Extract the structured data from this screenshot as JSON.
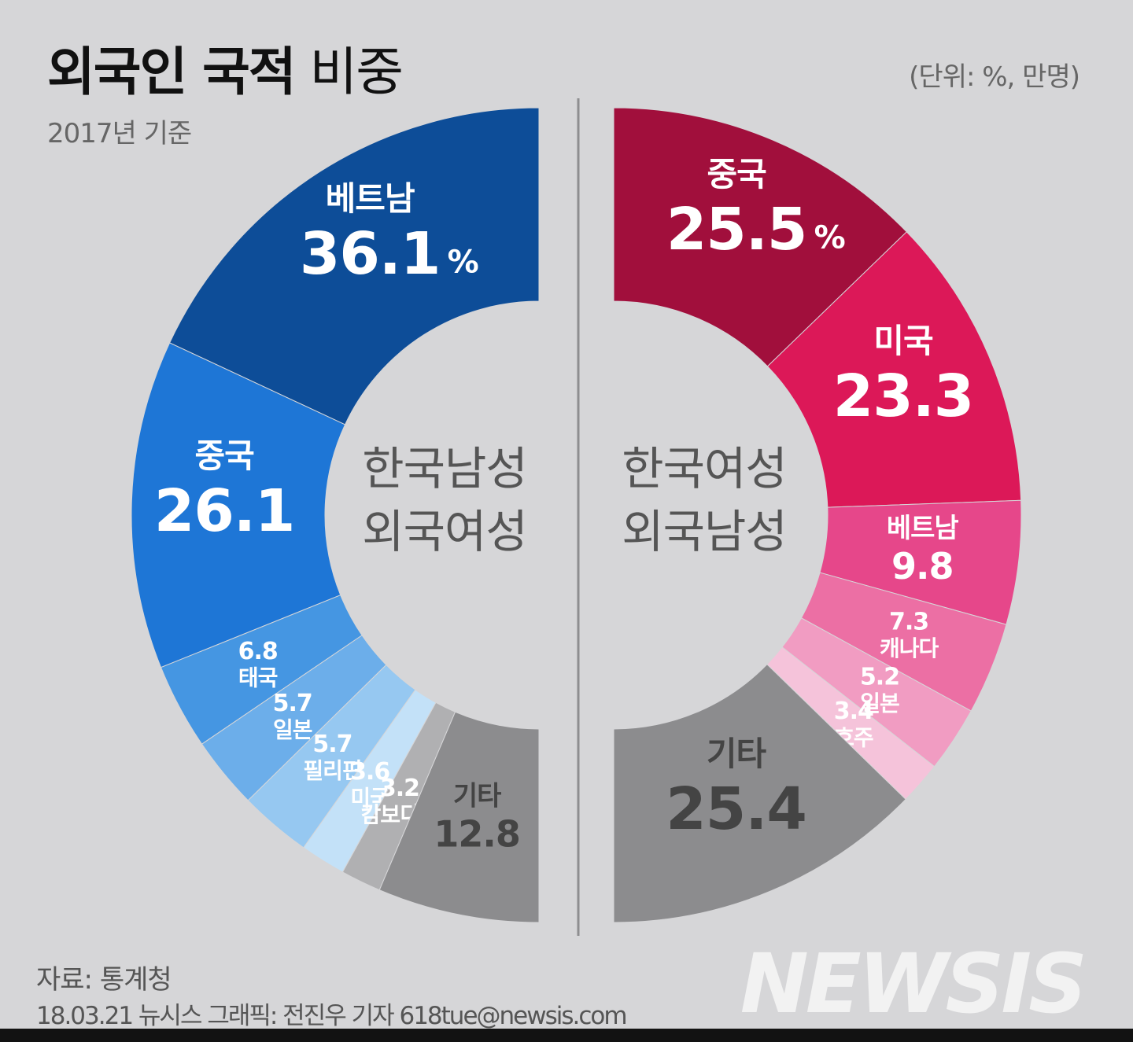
{
  "title_bold": "외국인 국적",
  "title_light": " 비중",
  "subtitle": "2017년 기준",
  "unit_note": "(단위: %, 만명)",
  "source": "자료: 통계청",
  "credit": "18.03.21 뉴시스 그래픽: 전진우 기자 618tue@newsis.com",
  "logo_text": "NEWSIS",
  "colors": {
    "background": "#d6d6d8",
    "divider": "#8e8e90",
    "center_label": "#555555"
  },
  "chart_data": [
    {
      "type": "pie",
      "center_label": [
        "한국남성",
        "외국여성"
      ],
      "slices": [
        {
          "label": "베트남",
          "value": 36.1,
          "value_text": "36.1",
          "suffix": "%",
          "color": "#0d4d98"
        },
        {
          "label": "중국",
          "value": 26.1,
          "value_text": "26.1",
          "suffix": "",
          "color": "#1e76d6"
        },
        {
          "label": "태국",
          "value": 6.8,
          "value_text": "6.8",
          "suffix": "",
          "color": "#4596e2"
        },
        {
          "label": "일본",
          "value": 5.7,
          "value_text": "5.7",
          "suffix": "",
          "color": "#6caeea"
        },
        {
          "label": "필리핀",
          "value": 5.7,
          "value_text": "5.7",
          "suffix": "",
          "color": "#96c8f1"
        },
        {
          "label": "미국",
          "value": 3.6,
          "value_text": "3.6",
          "suffix": "",
          "color": "#c3e1f8"
        },
        {
          "label": "캄보디아",
          "value": 3.2,
          "value_text": "3.2",
          "suffix": "",
          "color": "#b0b0b2"
        },
        {
          "label": "기타",
          "value": 12.8,
          "value_text": "12.8",
          "suffix": "",
          "color": "#8c8c8e"
        }
      ]
    },
    {
      "type": "pie",
      "center_label": [
        "한국여성",
        "외국남성"
      ],
      "slices": [
        {
          "label": "중국",
          "value": 25.5,
          "value_text": "25.5",
          "suffix": "%",
          "color": "#a10f3c"
        },
        {
          "label": "미국",
          "value": 23.3,
          "value_text": "23.3",
          "suffix": "",
          "color": "#dc1858"
        },
        {
          "label": "베트남",
          "value": 9.8,
          "value_text": "9.8",
          "suffix": "",
          "color": "#e6478a"
        },
        {
          "label": "캐나다",
          "value": 7.3,
          "value_text": "7.3",
          "suffix": "",
          "color": "#ec6fa4"
        },
        {
          "label": "일본",
          "value": 5.2,
          "value_text": "5.2",
          "suffix": "",
          "color": "#f19cc2"
        },
        {
          "label": "호주",
          "value": 3.4,
          "value_text": "3.4",
          "suffix": "",
          "color": "#f5c3da"
        },
        {
          "label": "기타",
          "value": 25.4,
          "value_text": "25.4",
          "suffix": "",
          "color": "#8c8c8e"
        }
      ]
    }
  ]
}
